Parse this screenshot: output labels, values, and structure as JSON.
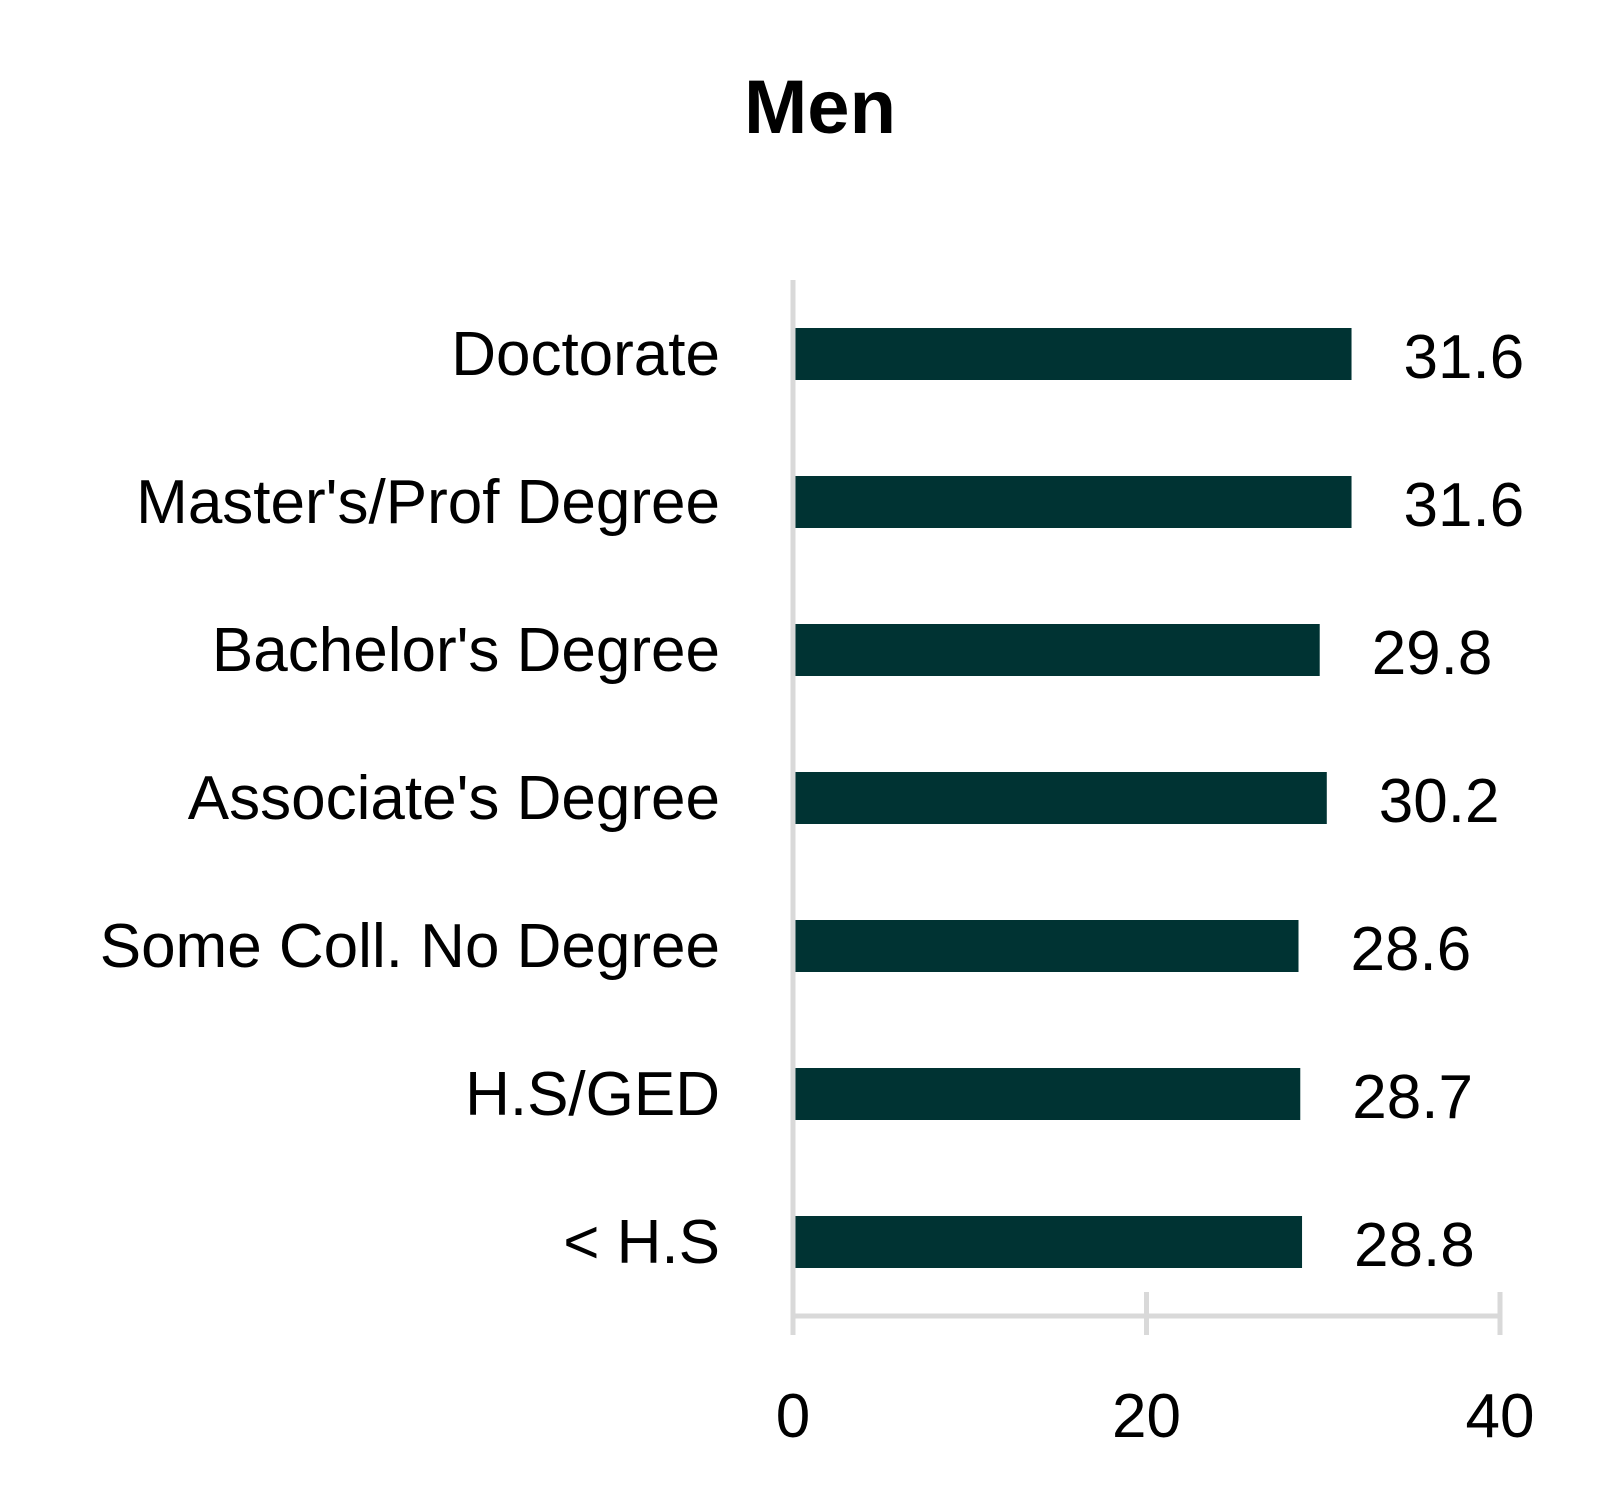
{
  "chart_data": {
    "type": "bar",
    "orientation": "horizontal",
    "title": "Men",
    "categories": [
      "Doctorate",
      "Master's/Prof Degree",
      "Bachelor's Degree",
      "Associate's Degree",
      "Some Coll. No Degree",
      "H.S/GED",
      "< H.S"
    ],
    "values": [
      31.6,
      31.6,
      29.8,
      30.2,
      28.6,
      28.7,
      28.8
    ],
    "data_labels": [
      "31.6",
      "31.6",
      "29.8",
      "30.2",
      "28.6",
      "28.7",
      "28.8"
    ],
    "xlabel": "",
    "ylabel": "",
    "xlim": [
      0,
      40
    ],
    "xticks": [
      0,
      20,
      40
    ],
    "xtick_labels": [
      "0",
      "20",
      "40"
    ],
    "grid": false,
    "legend": "none",
    "bar_color": "#003333",
    "axis_color": "#d9d9d9"
  }
}
